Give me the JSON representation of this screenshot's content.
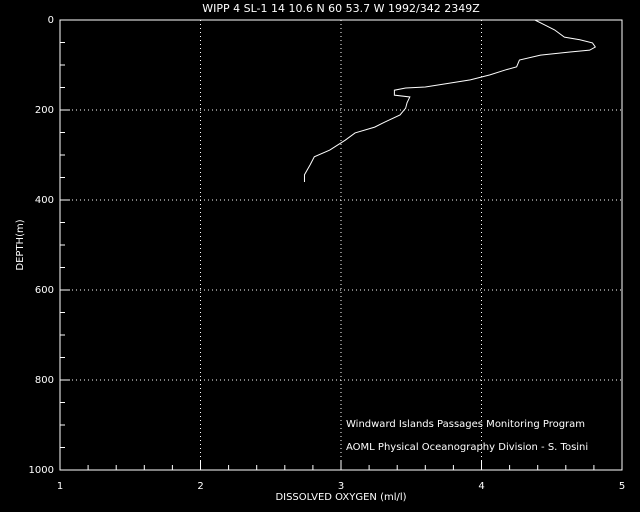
{
  "chart_data": {
    "type": "line",
    "title": "WIPP 4 SL-1  14 10.6 N  60 53.7 W  1992/342 2349Z",
    "x_label": "DISSOLVED OXYGEN (ml/l)",
    "y_label": "DEPTH(m)",
    "annotations": [
      "Windward Islands Passages Monitoring Program",
      "AOML Physical Oceanography Division - S. Tosini"
    ],
    "x": [
      4.38,
      4.45,
      4.52,
      4.59,
      4.7,
      4.79,
      4.81,
      4.77,
      4.63,
      4.42,
      4.27,
      4.25,
      4.17,
      4.06,
      3.92,
      3.78,
      3.6,
      3.46,
      3.38,
      3.38,
      3.49,
      3.47,
      3.46,
      3.42,
      3.31,
      3.24,
      3.1,
      3.03,
      2.92,
      2.81,
      2.78,
      2.74,
      2.74
    ],
    "values": [
      0,
      11,
      22,
      38,
      44,
      51,
      60,
      67,
      71,
      78,
      89,
      104,
      111,
      122,
      133,
      140,
      149,
      151,
      156,
      167,
      171,
      184,
      196,
      211,
      227,
      238,
      251,
      267,
      289,
      304,
      322,
      344,
      360
    ],
    "color": "#ffffff",
    "xlim": [
      1,
      5
    ],
    "xticks": [
      1,
      2,
      3,
      4,
      5
    ],
    "xminorticks": [
      1.2,
      1.4,
      1.6,
      1.8,
      2.2,
      2.4,
      2.6,
      2.8,
      3.2,
      3.4,
      3.6,
      3.8,
      4.2,
      4.4,
      4.6,
      4.8
    ],
    "ylim": [
      0,
      1000
    ],
    "yticks": [
      0,
      200,
      400,
      600,
      800,
      1000
    ],
    "yminorticks": [
      50,
      100,
      150,
      250,
      300,
      350,
      450,
      500,
      550,
      650,
      700,
      750,
      850,
      900,
      950
    ],
    "y_inverted": true,
    "grid": true
  }
}
